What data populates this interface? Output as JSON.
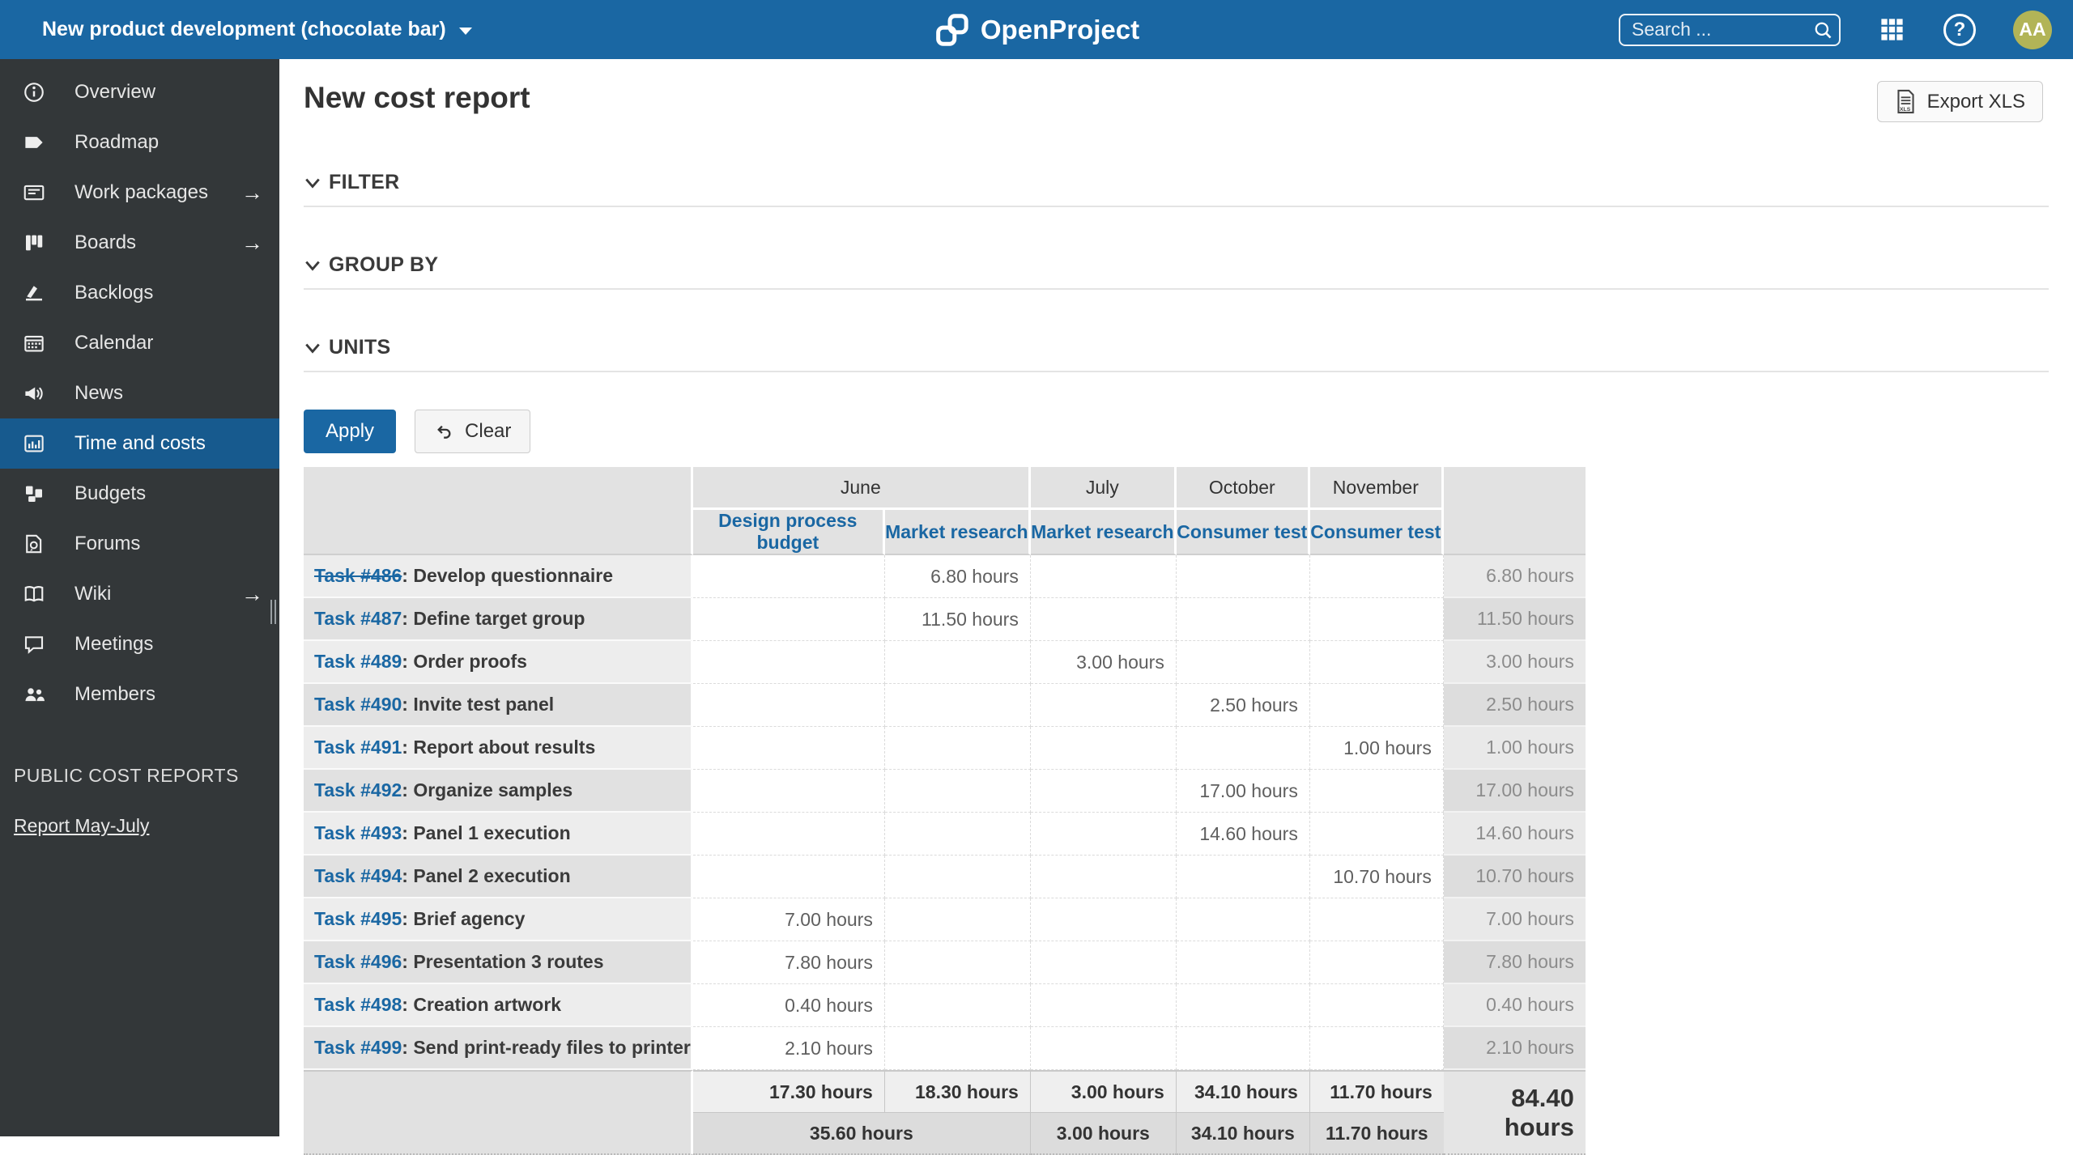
{
  "topbar": {
    "project_name": "New product development (chocolate bar)",
    "logo_text": "OpenProject",
    "search_placeholder": "Search ...",
    "help_label": "?",
    "avatar_initials": "AA"
  },
  "sidebar": {
    "items": [
      {
        "label": "Overview",
        "icon": "info-icon"
      },
      {
        "label": "Roadmap",
        "icon": "roadmap-icon"
      },
      {
        "label": "Work packages",
        "icon": "work-packages-icon",
        "arrow": true
      },
      {
        "label": "Boards",
        "icon": "boards-icon",
        "arrow": true
      },
      {
        "label": "Backlogs",
        "icon": "backlogs-icon"
      },
      {
        "label": "Calendar",
        "icon": "calendar-icon"
      },
      {
        "label": "News",
        "icon": "news-icon"
      },
      {
        "label": "Time and costs",
        "icon": "time-costs-icon",
        "active": true
      },
      {
        "label": "Budgets",
        "icon": "budgets-icon"
      },
      {
        "label": "Forums",
        "icon": "forums-icon"
      },
      {
        "label": "Wiki",
        "icon": "wiki-icon",
        "arrow": true
      },
      {
        "label": "Meetings",
        "icon": "meetings-icon"
      },
      {
        "label": "Members",
        "icon": "members-icon"
      }
    ],
    "public_reports": {
      "heading": "PUBLIC COST REPORTS",
      "link_label": "Report May-July"
    }
  },
  "page": {
    "title": "New cost report",
    "export_label": "Export XLS"
  },
  "sections": [
    {
      "label": "FILTER"
    },
    {
      "label": "GROUP BY"
    },
    {
      "label": "UNITS"
    }
  ],
  "actions": {
    "apply_label": "Apply",
    "clear_label": "Clear"
  },
  "table": {
    "task_separator": ": ",
    "months": [
      {
        "label": "June",
        "colspan": 2
      },
      {
        "label": "July",
        "colspan": 1
      },
      {
        "label": "October",
        "colspan": 1
      },
      {
        "label": "November",
        "colspan": 1
      }
    ],
    "categories": [
      "Design process budget",
      "Market research",
      "Market research",
      "Consumer test",
      "Consumer test"
    ],
    "rows": [
      {
        "task": "Task #486",
        "struck": true,
        "title": "Develop questionnaire",
        "values": [
          "",
          "6.80 hours",
          "",
          "",
          ""
        ],
        "total": "6.80 hours"
      },
      {
        "task": "Task #487",
        "struck": false,
        "title": "Define target group",
        "values": [
          "",
          "11.50 hours",
          "",
          "",
          ""
        ],
        "total": "11.50 hours"
      },
      {
        "task": "Task #489",
        "struck": false,
        "title": "Order proofs",
        "values": [
          "",
          "",
          "3.00 hours",
          "",
          ""
        ],
        "total": "3.00 hours"
      },
      {
        "task": "Task #490",
        "struck": false,
        "title": "Invite test panel",
        "values": [
          "",
          "",
          "",
          "2.50 hours",
          ""
        ],
        "total": "2.50 hours"
      },
      {
        "task": "Task #491",
        "struck": false,
        "title": "Report about results",
        "values": [
          "",
          "",
          "",
          "",
          "1.00 hours"
        ],
        "total": "1.00 hours"
      },
      {
        "task": "Task #492",
        "struck": false,
        "title": "Organize samples",
        "values": [
          "",
          "",
          "",
          "17.00 hours",
          ""
        ],
        "total": "17.00 hours"
      },
      {
        "task": "Task #493",
        "struck": false,
        "title": "Panel 1 execution",
        "values": [
          "",
          "",
          "",
          "14.60 hours",
          ""
        ],
        "total": "14.60 hours"
      },
      {
        "task": "Task #494",
        "struck": false,
        "title": "Panel 2 execution",
        "values": [
          "",
          "",
          "",
          "",
          "10.70 hours"
        ],
        "total": "10.70 hours"
      },
      {
        "task": "Task #495",
        "struck": false,
        "title": "Brief agency",
        "values": [
          "7.00 hours",
          "",
          "",
          "",
          ""
        ],
        "total": "7.00 hours"
      },
      {
        "task": "Task #496",
        "struck": false,
        "title": "Presentation 3 routes",
        "values": [
          "7.80 hours",
          "",
          "",
          "",
          ""
        ],
        "total": "7.80 hours"
      },
      {
        "task": "Task #498",
        "struck": false,
        "title": "Creation artwork",
        "values": [
          "0.40 hours",
          "",
          "",
          "",
          ""
        ],
        "total": "0.40 hours"
      },
      {
        "task": "Task #499",
        "struck": false,
        "title": "Send print-ready files to printer",
        "values": [
          "2.10 hours",
          "",
          "",
          "",
          ""
        ],
        "total": "2.10 hours"
      }
    ],
    "footer": {
      "column_totals": [
        "17.30 hours",
        "18.30 hours",
        "3.00 hours",
        "34.10 hours",
        "11.70 hours"
      ],
      "month_totals": [
        {
          "label": "35.60 hours",
          "colspan": 2
        },
        {
          "label": "3.00 hours",
          "colspan": 1
        },
        {
          "label": "34.10 hours",
          "colspan": 1
        },
        {
          "label": "11.70 hours",
          "colspan": 1
        }
      ],
      "grand_total": "84.40 hours"
    }
  },
  "colors": {
    "header_bg": "#1A67A3",
    "sidebar_bg": "#333739",
    "active_item_bg": "#175A8E",
    "link": "#1A67A3",
    "avatar_bg": "#B2B457"
  }
}
